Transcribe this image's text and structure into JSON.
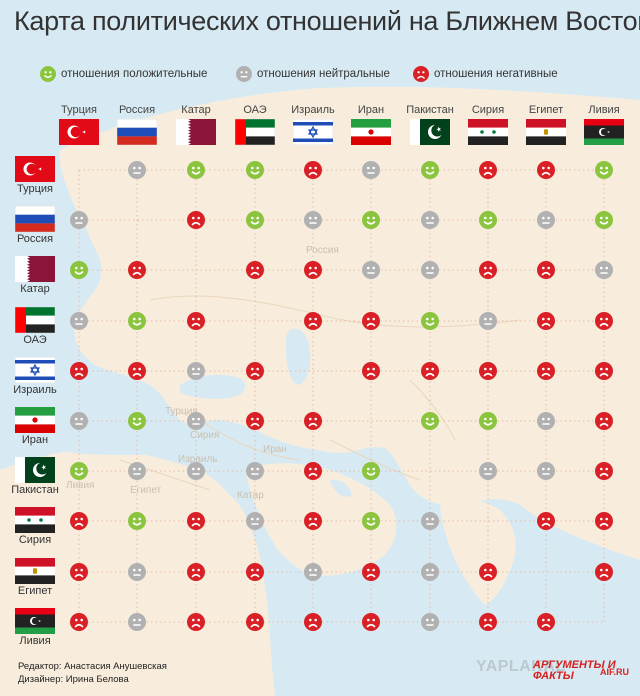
{
  "title": "Карта политических отношений на Ближнем Востоке",
  "legend": {
    "positive": "отношения положительные",
    "neutral": "отношения нейтральные",
    "negative": "отношения негативные"
  },
  "colors": {
    "positive": "#8bc43f",
    "neutral": "#b1b1b1",
    "negative": "#d92027"
  },
  "icons": {
    "positive": "smile-face-icon",
    "neutral": "neutral-face-icon",
    "negative": "sad-face-icon"
  },
  "countries": [
    "Турция",
    "Россия",
    "Катар",
    "ОАЭ",
    "Израиль",
    "Иран",
    "Пакистан",
    "Сирия",
    "Египет",
    "Ливия"
  ],
  "relations": [
    [
      "",
      "n",
      "p",
      "p",
      "s",
      "n",
      "p",
      "s",
      "s",
      "p"
    ],
    [
      "n",
      "",
      "s",
      "p",
      "n",
      "p",
      "n",
      "p",
      "n",
      "p"
    ],
    [
      "p",
      "s",
      "",
      "s",
      "s",
      "n",
      "n",
      "s",
      "s",
      "n"
    ],
    [
      "n",
      "p",
      "s",
      "",
      "s",
      "s",
      "p",
      "n",
      "s",
      "s"
    ],
    [
      "s",
      "s",
      "n",
      "s",
      "",
      "s",
      "s",
      "s",
      "s",
      "s"
    ],
    [
      "n",
      "p",
      "n",
      "s",
      "s",
      "",
      "p",
      "p",
      "n",
      "s"
    ],
    [
      "p",
      "n",
      "n",
      "n",
      "s",
      "p",
      "",
      "n",
      "n",
      "s"
    ],
    [
      "s",
      "p",
      "s",
      "n",
      "s",
      "p",
      "n",
      "",
      "s",
      "s"
    ],
    [
      "s",
      "n",
      "s",
      "s",
      "n",
      "s",
      "n",
      "s",
      "",
      "s"
    ],
    [
      "s",
      "n",
      "s",
      "s",
      "s",
      "s",
      "n",
      "s",
      "s",
      ""
    ]
  ],
  "map_labels": [
    "Россия",
    "Турция",
    "Сирия",
    "Израиль",
    "Египет",
    "Катар",
    "Иран",
    "Ливия"
  ],
  "credits": {
    "editor": "Редактор: Анастасия Анушевская",
    "designer": "Дизайнер: Ирина Белова"
  },
  "logos": {
    "watermark": "YAPLAKAL",
    "brand": "АРГУМЕНТЫ И ФАКТЫ",
    "site": "AIF.RU"
  }
}
